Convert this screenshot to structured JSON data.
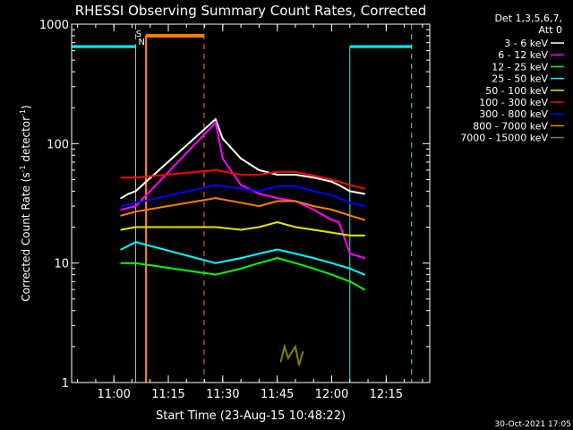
{
  "chart_data": {
    "type": "line",
    "title": "RHESSI Observing Summary Count Rates, Corrected",
    "xlabel": "Start Time (23-Aug-15 10:48:22)",
    "ylabel_main": "Corrected Count Rate (s",
    "ylabel_sup1": "-1",
    "ylabel_mid": " detector",
    "ylabel_sup2": "-1",
    "ylabel_end": ")",
    "y_scale": "log",
    "xlim": [
      "10:48:22",
      "12:27:00"
    ],
    "ylim": [
      1,
      1000
    ],
    "x_ticks": [
      "11:00",
      "11:15",
      "11:30",
      "11:45",
      "12:00",
      "12:15"
    ],
    "y_ticks": [
      "1",
      "10",
      "100",
      "1000"
    ],
    "legend_title_1": "Det 1,3,5,6,7,",
    "legend_title_2": "Att 0",
    "legend_placement": "right",
    "timestamp": "30-Oct-2021 17:05",
    "markers": [
      {
        "label": "S",
        "time": "11:06:50",
        "color": "#ff8000"
      },
      {
        "label": "N",
        "time": "11:07:40",
        "color": "#00ffff"
      }
    ],
    "flags": {
      "night": [
        {
          "time": "10:48:22",
          "color": "#00ffff",
          "value": 650,
          "start": "10:48:22",
          "end": "11:06:00"
        },
        {
          "time": "12:05:00",
          "color": "#00ffff",
          "value": 650,
          "start": "12:05:00",
          "end": "12:22:00"
        }
      ],
      "saa": {
        "color": "#ff8000",
        "value": 800,
        "start": "11:08:50",
        "end": "11:24:50"
      },
      "dashed_lines_cyan": [
        "11:06:00",
        "12:22:00"
      ],
      "dashed_lines_orange": [
        "11:24:50"
      ]
    },
    "series": [
      {
        "name": "3 - 6 keV",
        "color": "#ffffff",
        "points": [
          [
            "11:02:00",
            35
          ],
          [
            "11:04:00",
            38
          ],
          [
            "11:06:00",
            40
          ],
          [
            "11:28:00",
            160
          ],
          [
            "11:30:00",
            110
          ],
          [
            "11:35:00",
            75
          ],
          [
            "11:40:00",
            60
          ],
          [
            "11:45:00",
            55
          ],
          [
            "11:50:00",
            55
          ],
          [
            "11:55:00",
            52
          ],
          [
            "12:00:00",
            48
          ],
          [
            "12:02:00",
            45
          ],
          [
            "12:05:00",
            40
          ],
          [
            "12:09:00",
            38
          ]
        ]
      },
      {
        "name": "6 - 12 keV",
        "color": "#ff00ff",
        "points": [
          [
            "11:02:00",
            28
          ],
          [
            "11:06:00",
            30
          ],
          [
            "11:28:00",
            150
          ],
          [
            "11:30:00",
            75
          ],
          [
            "11:35:00",
            45
          ],
          [
            "11:40:00",
            38
          ],
          [
            "11:45:00",
            35
          ],
          [
            "11:50:00",
            33
          ],
          [
            "11:55:00",
            28
          ],
          [
            "12:00:00",
            23
          ],
          [
            "12:02:00",
            22
          ],
          [
            "12:05:00",
            12
          ],
          [
            "12:09:00",
            11
          ]
        ]
      },
      {
        "name": "12 - 25 keV",
        "color": "#00ff00",
        "points": [
          [
            "11:02:00",
            10
          ],
          [
            "11:06:00",
            10
          ],
          [
            "11:28:00",
            8
          ],
          [
            "11:35:00",
            9
          ],
          [
            "11:40:00",
            10
          ],
          [
            "11:45:00",
            11
          ],
          [
            "11:50:00",
            10
          ],
          [
            "11:55:00",
            9
          ],
          [
            "12:00:00",
            8
          ],
          [
            "12:05:00",
            7
          ],
          [
            "12:09:00",
            6
          ]
        ]
      },
      {
        "name": "25 - 50 keV",
        "color": "#00ffff",
        "points": [
          [
            "11:02:00",
            13
          ],
          [
            "11:06:00",
            15
          ],
          [
            "11:28:00",
            10
          ],
          [
            "11:35:00",
            11
          ],
          [
            "11:40:00",
            12
          ],
          [
            "11:45:00",
            13
          ],
          [
            "11:50:00",
            12
          ],
          [
            "11:55:00",
            11
          ],
          [
            "12:00:00",
            10
          ],
          [
            "12:05:00",
            9
          ],
          [
            "12:09:00",
            8
          ]
        ]
      },
      {
        "name": "50 - 100 keV",
        "color": "#e6e600",
        "points": [
          [
            "11:02:00",
            19
          ],
          [
            "11:06:00",
            20
          ],
          [
            "11:28:00",
            20
          ],
          [
            "11:35:00",
            19
          ],
          [
            "11:40:00",
            20
          ],
          [
            "11:45:00",
            22
          ],
          [
            "11:50:00",
            20
          ],
          [
            "11:55:00",
            19
          ],
          [
            "12:00:00",
            18
          ],
          [
            "12:05:00",
            17
          ],
          [
            "12:09:00",
            17
          ]
        ]
      },
      {
        "name": "100 - 300 keV",
        "color": "#ff0000",
        "points": [
          [
            "11:02:00",
            52
          ],
          [
            "11:06:00",
            52
          ],
          [
            "11:28:00",
            60
          ],
          [
            "11:35:00",
            55
          ],
          [
            "11:40:00",
            55
          ],
          [
            "11:45:00",
            58
          ],
          [
            "11:50:00",
            58
          ],
          [
            "11:55:00",
            54
          ],
          [
            "12:00:00",
            50
          ],
          [
            "12:05:00",
            45
          ],
          [
            "12:09:00",
            42
          ]
        ]
      },
      {
        "name": "300 - 800 keV",
        "color": "#0000ff",
        "points": [
          [
            "11:02:00",
            30
          ],
          [
            "11:06:00",
            32
          ],
          [
            "11:28:00",
            45
          ],
          [
            "11:35:00",
            42
          ],
          [
            "11:40:00",
            40
          ],
          [
            "11:45:00",
            44
          ],
          [
            "11:50:00",
            44
          ],
          [
            "11:55:00",
            40
          ],
          [
            "12:00:00",
            37
          ],
          [
            "12:05:00",
            32
          ],
          [
            "12:09:00",
            30
          ]
        ]
      },
      {
        "name": "800 - 7000 keV",
        "color": "#ff8000",
        "points": [
          [
            "11:02:00",
            25
          ],
          [
            "11:06:00",
            27
          ],
          [
            "11:28:00",
            35
          ],
          [
            "11:35:00",
            32
          ],
          [
            "11:40:00",
            30
          ],
          [
            "11:45:00",
            33
          ],
          [
            "11:50:00",
            33
          ],
          [
            "11:55:00",
            30
          ],
          [
            "12:00:00",
            28
          ],
          [
            "12:05:00",
            25
          ],
          [
            "12:09:00",
            23
          ]
        ]
      },
      {
        "name": "7000 - 15000 keV",
        "color": "#808000",
        "points": [
          [
            "11:46:00",
            1.5
          ],
          [
            "11:47:00",
            2
          ],
          [
            "11:48:00",
            1.6
          ],
          [
            "11:50:00",
            2
          ],
          [
            "11:51:00",
            1.4
          ],
          [
            "11:52:00",
            1.8
          ]
        ]
      }
    ]
  }
}
